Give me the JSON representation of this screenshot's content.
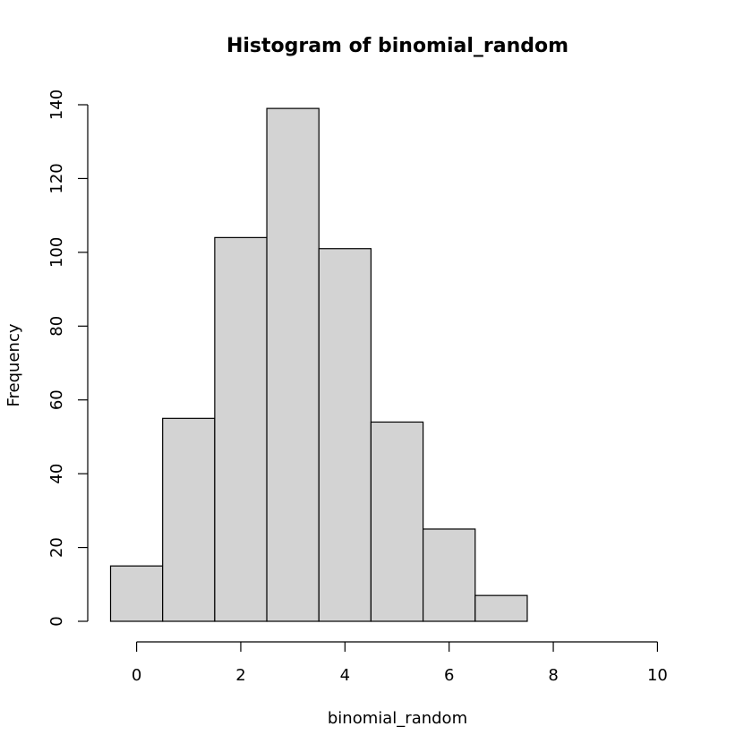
{
  "chart_data": {
    "type": "bar",
    "title": "Histogram of binomial_random",
    "xlabel": "binomial_random",
    "ylabel": "Frequency",
    "bins": [
      {
        "x0": -0.5,
        "x1": 0.5,
        "count": 15
      },
      {
        "x0": 0.5,
        "x1": 1.5,
        "count": 55
      },
      {
        "x0": 1.5,
        "x1": 2.5,
        "count": 104
      },
      {
        "x0": 2.5,
        "x1": 3.5,
        "count": 139
      },
      {
        "x0": 3.5,
        "x1": 4.5,
        "count": 101
      },
      {
        "x0": 4.5,
        "x1": 5.5,
        "count": 54
      },
      {
        "x0": 5.5,
        "x1": 6.5,
        "count": 25
      },
      {
        "x0": 6.5,
        "x1": 7.5,
        "count": 7
      },
      {
        "x0": 7.5,
        "x1": 8.5,
        "count": 0
      },
      {
        "x0": 8.5,
        "x1": 9.5,
        "count": 0
      },
      {
        "x0": 9.5,
        "x1": 10.5,
        "count": 0
      }
    ],
    "xlim": [
      -0.5,
      10.5
    ],
    "ylim": [
      0,
      140
    ],
    "x_ticks": [
      0,
      2,
      4,
      6,
      8,
      10
    ],
    "y_ticks": [
      0,
      20,
      40,
      60,
      80,
      100,
      120,
      140
    ],
    "grid": false,
    "bar_color": "#d3d3d3",
    "edge_color": "#000000"
  }
}
